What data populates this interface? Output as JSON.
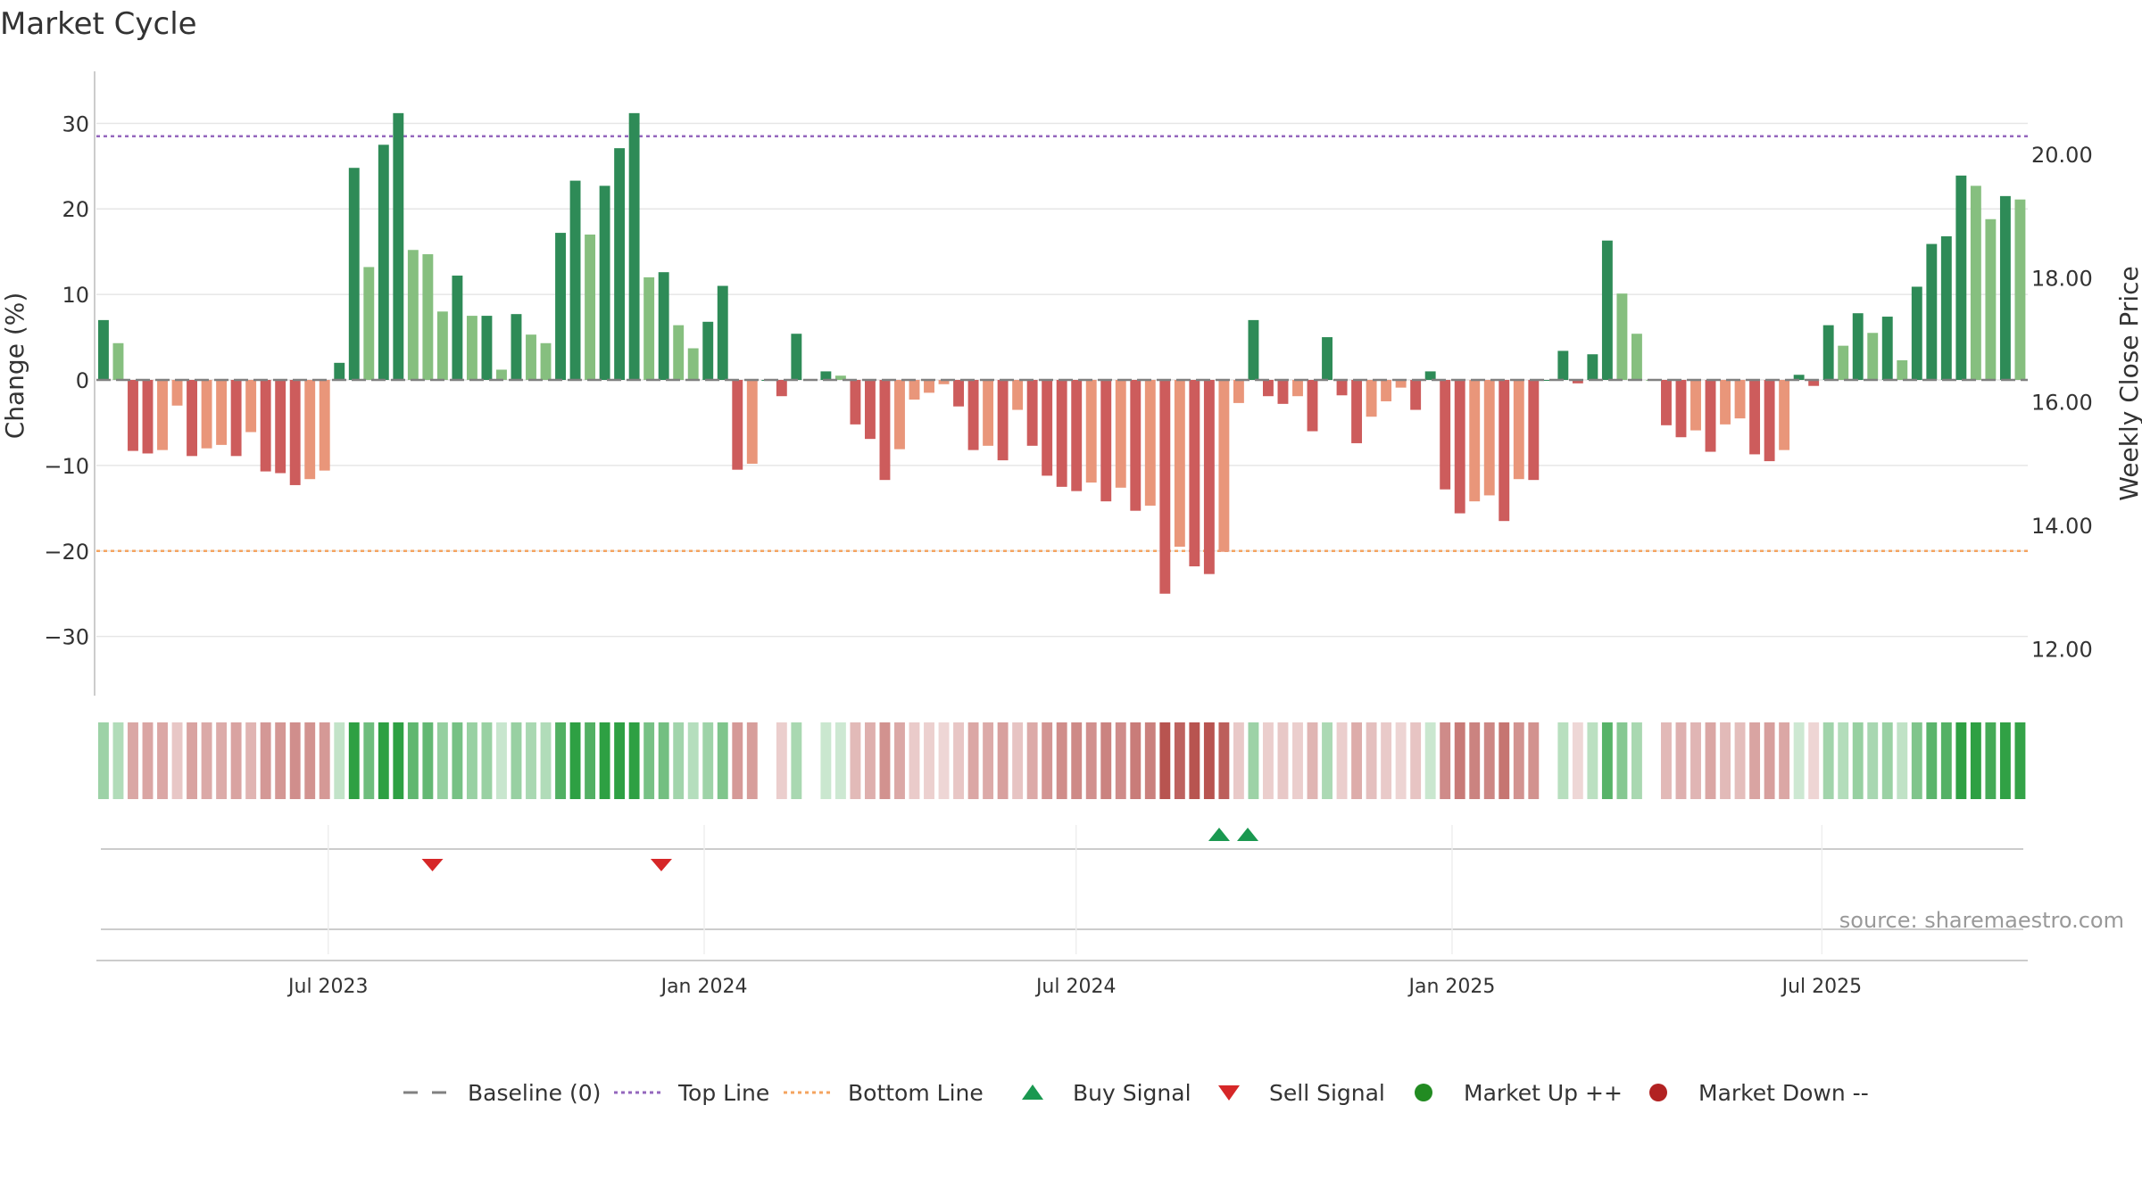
{
  "chart_data": {
    "type": "bar",
    "title": "Market Cycle",
    "ylabel": "Change (%)",
    "y2label": "Weekly Close Price",
    "source": "source: sharemaestro.com",
    "ylim": [
      -34,
      34
    ],
    "yticks": [
      30,
      20,
      10,
      0,
      -10,
      -20,
      -30
    ],
    "ytick_labels": [
      "30",
      "20",
      "10",
      "0",
      "−10",
      "−20",
      "−30"
    ],
    "y2lim": [
      11.65,
      21.05
    ],
    "y2ticks": [
      20,
      18,
      16,
      14,
      12
    ],
    "y2tick_labels": [
      "20.00",
      "18.00",
      "16.00",
      "14.00",
      "12.00"
    ],
    "x_start": "2023-03-13",
    "x_range": [
      "2023-03-13",
      "2025-10-06"
    ],
    "xticks": [
      "2023-07-01",
      "2024-01-01",
      "2024-07-01",
      "2025-01-01",
      "2025-07-01"
    ],
    "xtick_labels": [
      "Jul 2023",
      "Jan 2024",
      "Jul 2024",
      "Jan 2025",
      "Jul 2025"
    ],
    "top_line": 28.5,
    "bottom_line": -20,
    "grid": true,
    "values": [
      7,
      4.3,
      -8.3,
      -8.6,
      -8.2,
      -3,
      -8.9,
      -8,
      -7.6,
      -8.9,
      -6.1,
      -10.7,
      -10.9,
      -12.3,
      -11.6,
      -10.6,
      2,
      24.8,
      13.2,
      27.5,
      31.2,
      15.2,
      14.7,
      8,
      12.2,
      7.5,
      7.5,
      1.2,
      7.7,
      5.3,
      4.3,
      17.2,
      23.3,
      17,
      22.7,
      27.1,
      31.2,
      12,
      12.6,
      6.4,
      3.7,
      6.8,
      11,
      -10.5,
      -9.8,
      0,
      -1.9,
      5.4,
      0,
      1,
      0.5,
      -5.2,
      -6.9,
      -11.7,
      -8.1,
      -2.3,
      -1.5,
      -0.5,
      -3.1,
      -8.2,
      -7.7,
      -9.4,
      -3.5,
      -7.7,
      -11.2,
      -12.5,
      -13,
      -12,
      -14.2,
      -12.6,
      -15.3,
      -14.7,
      -25,
      -19.5,
      -21.8,
      -22.7,
      -20.1,
      -2.7,
      7,
      -1.9,
      -2.8,
      -1.9,
      -6,
      5,
      -1.8,
      -7.4,
      -4.3,
      -2.5,
      -0.9,
      -3.5,
      1,
      -12.8,
      -15.6,
      -14.2,
      -13.5,
      -16.5,
      -11.6,
      -11.7,
      0,
      3.4,
      -0.4,
      3,
      16.3,
      10.1,
      5.4,
      0,
      -5.3,
      -6.7,
      -5.9,
      -8.4,
      -5.2,
      -4.5,
      -8.7,
      -9.5,
      -8.2,
      0.6,
      -0.7,
      6.4,
      4,
      7.8,
      5.5,
      7.4,
      2.3,
      10.9,
      15.9,
      16.8,
      23.9,
      22.7,
      18.8,
      21.5,
      21.1
    ],
    "band_label_hidden": "",
    "buy_signals": [
      "2024-09-09",
      "2024-09-23"
    ],
    "sell_signals": [
      "2023-08-21",
      "2023-12-11"
    ],
    "colors": {
      "up_strong": "#2e8b57",
      "up_light": "#86bf7f",
      "down_strong": "#cd5c5c",
      "down_light": "#e9967a",
      "top_line": "#9467bd",
      "bottom_line": "#f4a460",
      "buy": "#1a9850",
      "sell": "#d62728",
      "market_up": "#228b22",
      "market_down": "#b22222",
      "baseline": "#808080"
    },
    "legend_position": "bottom-center",
    "legend": [
      {
        "label": "Baseline (0)",
        "symbol": "dash",
        "color": "#808080"
      },
      {
        "label": "Top Line",
        "symbol": "dotted",
        "color": "#9467bd"
      },
      {
        "label": "Bottom Line",
        "symbol": "dotted",
        "color": "#f4a460"
      },
      {
        "label": "Buy Signal",
        "symbol": "triangle-up",
        "color": "#1a9850"
      },
      {
        "label": "Sell Signal",
        "symbol": "triangle-down",
        "color": "#d62728"
      },
      {
        "label": "Market Up ++",
        "symbol": "circle",
        "color": "#228b22"
      },
      {
        "label": "Market Down --",
        "symbol": "circle",
        "color": "#b22222"
      }
    ]
  }
}
